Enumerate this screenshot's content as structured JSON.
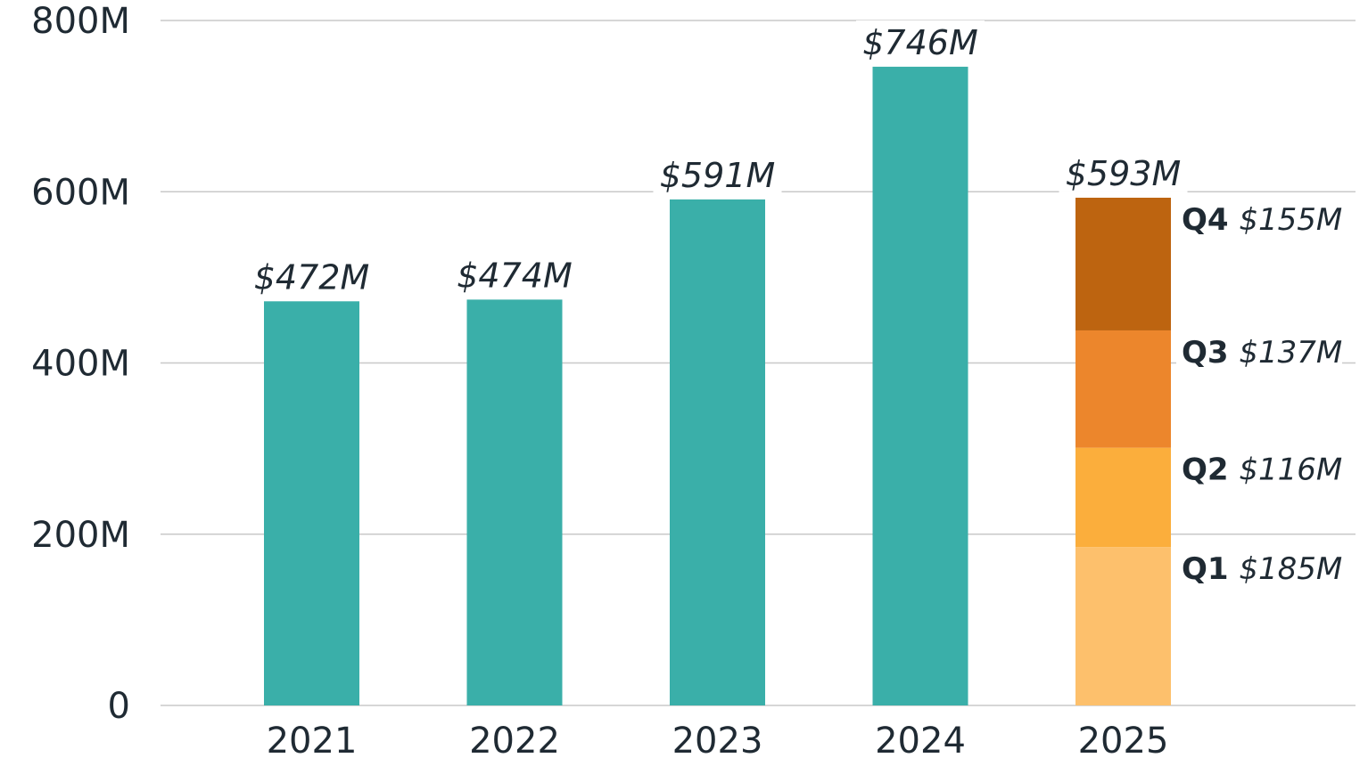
{
  "chart_data": {
    "type": "bar",
    "categories": [
      "2021",
      "2022",
      "2023",
      "2024",
      "2025"
    ],
    "values": [
      472,
      474,
      591,
      746,
      593
    ],
    "value_labels": [
      "$472M",
      "$474M",
      "$591M",
      "$746M",
      "$593M"
    ],
    "stacked_category": "2025",
    "stack": [
      {
        "name": "Q1",
        "value": 185,
        "label": "$185M",
        "color": "#fdc06c"
      },
      {
        "name": "Q2",
        "value": 116,
        "label": "$116M",
        "color": "#fbae3c"
      },
      {
        "name": "Q3",
        "value": 137,
        "label": "$137M",
        "color": "#ec862c"
      },
      {
        "name": "Q4",
        "value": 155,
        "label": "$155M",
        "color": "#bd6410"
      }
    ],
    "bar_color": "#3aafa9",
    "yticks": [
      0,
      200,
      400,
      600,
      800
    ],
    "ytick_labels": [
      "0",
      "200M",
      "400M",
      "600M",
      "800M"
    ],
    "ylim": [
      0,
      800
    ],
    "grid": true,
    "title": "",
    "xlabel": "",
    "ylabel": ""
  }
}
